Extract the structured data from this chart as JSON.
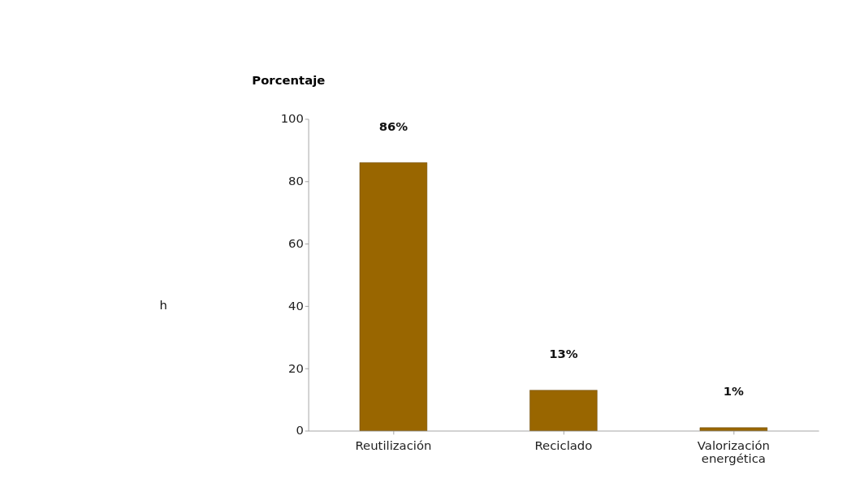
{
  "chart_data": {
    "type": "bar",
    "ylabel": "Porcentaje",
    "categories": [
      "Reutilización",
      "Reciclado",
      "Valorización energética"
    ],
    "values": [
      86,
      13,
      1
    ],
    "value_labels": [
      "86%",
      "13%",
      "1%"
    ],
    "color": "#996600",
    "ylim": [
      0,
      100
    ],
    "yticks": [
      0,
      20,
      40,
      60,
      80,
      100
    ],
    "grid": false,
    "annotations": [
      "h"
    ]
  }
}
